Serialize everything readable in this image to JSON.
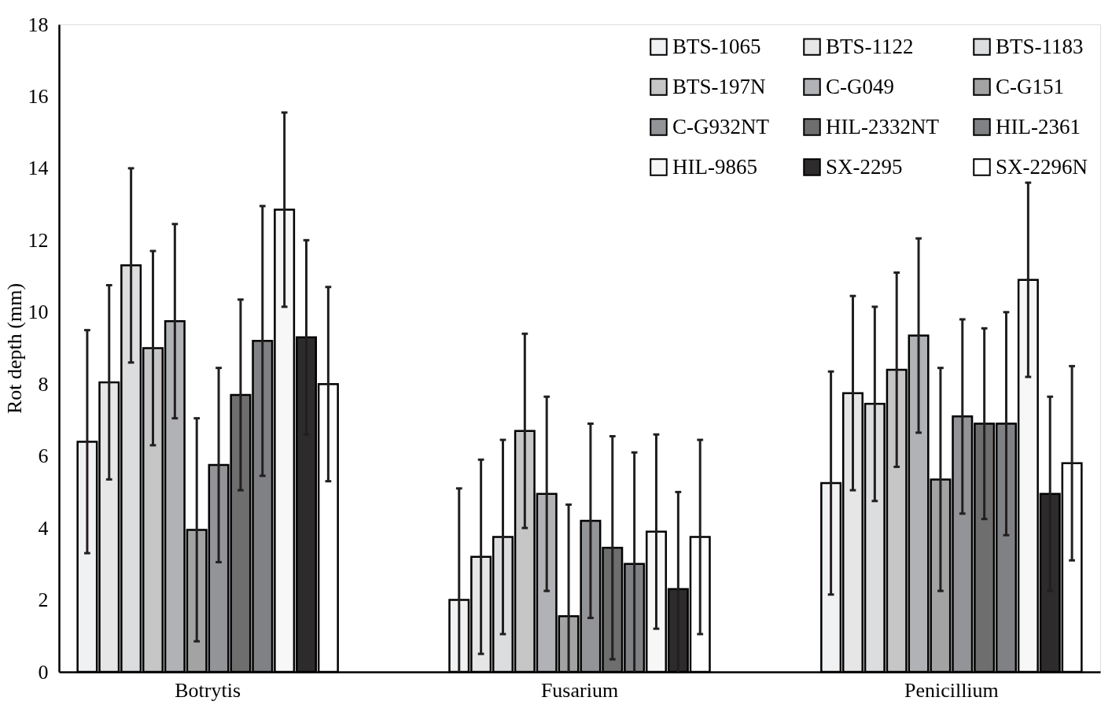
{
  "chart_data": {
    "type": "bar",
    "ylabel": "Rot depth (mm)",
    "categories": [
      "Botrytis",
      "Fusarium",
      "Penicillium"
    ],
    "ylim": [
      0,
      18
    ],
    "yticks": [
      0,
      2,
      4,
      6,
      8,
      10,
      12,
      14,
      16,
      18
    ],
    "grid": false,
    "legend": "top right",
    "series": [
      {
        "name": "BTS-1065",
        "color": "#f0f1f2",
        "values": [
          6.4,
          2.0,
          5.25
        ],
        "errors": [
          3.1,
          [
            0,
            5.1
          ],
          3.1
        ]
      },
      {
        "name": "BTS-1122",
        "color": "#e6e6e6",
        "values": [
          8.05,
          3.2,
          7.75
        ],
        "errors": [
          2.7,
          2.7,
          2.7
        ]
      },
      {
        "name": "BTS-1183",
        "color": "#dcdddf",
        "values": [
          11.3,
          3.75,
          7.45
        ],
        "errors": [
          2.7,
          2.7,
          2.7
        ]
      },
      {
        "name": "BTS-197N",
        "color": "#c6c6c6",
        "values": [
          9.0,
          6.7,
          8.4
        ],
        "errors": [
          2.7,
          2.7,
          2.7
        ]
      },
      {
        "name": "C-G049",
        "color": "#b1b2b5",
        "values": [
          9.75,
          4.95,
          9.35
        ],
        "errors": [
          2.7,
          2.7,
          2.7
        ]
      },
      {
        "name": "C-G151",
        "color": "#a3a3a3",
        "values": [
          3.95,
          1.55,
          5.35
        ],
        "errors": [
          3.1,
          [
            0,
            4.65
          ],
          3.1
        ]
      },
      {
        "name": "C-G932NT",
        "color": "#939497",
        "values": [
          5.75,
          4.2,
          7.1
        ],
        "errors": [
          2.7,
          2.7,
          2.7
        ]
      },
      {
        "name": "HIL-2332NT",
        "color": "#6e6e6e",
        "values": [
          7.7,
          3.45,
          6.9
        ],
        "errors": [
          2.65,
          3.1,
          2.65
        ]
      },
      {
        "name": "HIL-2361",
        "color": "#808184",
        "values": [
          9.2,
          3.0,
          6.9
        ],
        "errors": [
          3.75,
          [
            0,
            6.1
          ],
          3.1
        ]
      },
      {
        "name": "HIL-9865",
        "color": "#f7f7f7",
        "values": [
          12.85,
          3.9,
          10.9
        ],
        "errors": [
          2.7,
          2.7,
          2.7
        ]
      },
      {
        "name": "SX-2295",
        "color": "#2d2b2c",
        "values": [
          9.3,
          2.3,
          4.95
        ],
        "errors": [
          2.7,
          [
            0,
            5.0
          ],
          2.7
        ]
      },
      {
        "name": "SX-2296N",
        "color": "#ffffff",
        "values": [
          8.0,
          3.75,
          5.8
        ],
        "errors": [
          2.7,
          2.7,
          2.7
        ]
      }
    ]
  }
}
